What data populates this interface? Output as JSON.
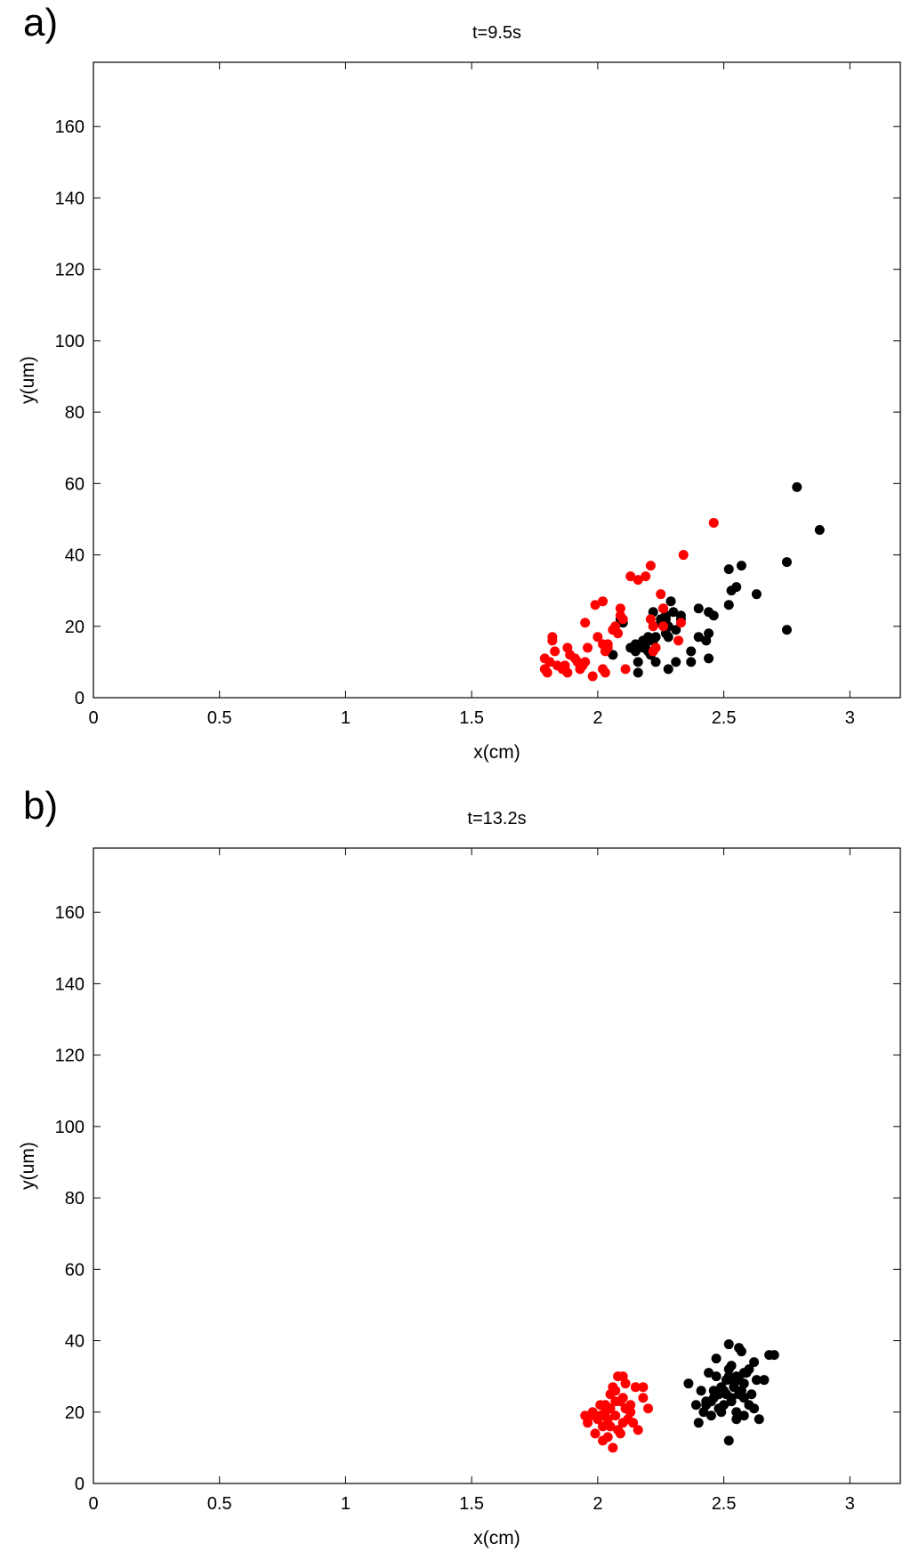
{
  "chart_data": [
    {
      "type": "scatter",
      "panel_label": "a)",
      "title": "t=9.5s",
      "xlabel": "x(cm)",
      "ylabel": "y(um)",
      "xlim": [
        0,
        3.2
      ],
      "ylim": [
        0,
        178
      ],
      "xticks": [
        0,
        0.5,
        1,
        1.5,
        2,
        2.5,
        3
      ],
      "xtick_labels": [
        "0",
        "0.5",
        "1",
        "1.5",
        "2",
        "2.5",
        "3"
      ],
      "yticks": [
        0,
        20,
        40,
        60,
        80,
        100,
        120,
        140,
        160
      ],
      "ytick_labels": [
        "0",
        "20",
        "40",
        "60",
        "80",
        "100",
        "120",
        "140",
        "160"
      ],
      "grid": false,
      "series": [
        {
          "color": "#000000",
          "x": [
            2.79,
            2.88,
            2.75,
            2.75,
            2.63,
            2.57,
            2.55,
            2.53,
            2.52,
            2.52,
            2.46,
            2.44,
            2.44,
            2.44,
            2.43,
            2.4,
            2.4,
            2.37,
            2.37,
            2.33,
            2.33,
            2.31,
            2.3,
            2.29,
            2.28,
            2.28,
            2.28,
            2.27,
            2.27,
            2.26,
            2.25,
            2.23,
            2.23,
            2.22,
            2.22,
            2.21,
            2.2,
            2.2,
            2.19,
            2.18,
            2.18,
            2.16,
            2.16,
            2.15,
            2.15,
            2.13,
            2.1,
            2.09,
            2.06,
            2.27,
            2.31,
            2.25
          ],
          "y": [
            59,
            47,
            38,
            19,
            29,
            37,
            31,
            30,
            36,
            26,
            23,
            11,
            24,
            18,
            16,
            17,
            25,
            13,
            10,
            23,
            22,
            10,
            24,
            27,
            20,
            17,
            8,
            18,
            23,
            25,
            22,
            10,
            17,
            24,
            16,
            12,
            13,
            17,
            15,
            14,
            16,
            7,
            10,
            15,
            13,
            14,
            21,
            22,
            12,
            22,
            19,
            21
          ]
        },
        {
          "color": "#ff0000",
          "x": [
            2.46,
            2.34,
            2.21,
            2.16,
            2.19,
            2.13,
            2.02,
            1.99,
            2.09,
            2.09,
            2.1,
            2.06,
            2.07,
            2.0,
            2.02,
            2.03,
            2.04,
            1.95,
            1.96,
            1.95,
            1.94,
            1.93,
            1.91,
            1.89,
            1.88,
            1.88,
            1.87,
            1.86,
            1.83,
            1.82,
            1.82,
            1.81,
            1.79,
            1.79,
            1.8,
            1.84,
            1.92,
            1.98,
            2.04,
            2.03,
            2.02,
            2.11,
            2.21,
            2.22,
            2.25,
            2.26,
            2.32,
            2.33,
            2.26,
            2.22,
            2.23,
            2.08
          ],
          "y": [
            49,
            40,
            37,
            33,
            34,
            34,
            27,
            26,
            25,
            23,
            22,
            19,
            20,
            17,
            15,
            13,
            14,
            21,
            14,
            10,
            9,
            8,
            11,
            12,
            7,
            14,
            9,
            8,
            13,
            17,
            16,
            10,
            11,
            8,
            7,
            9,
            10,
            6,
            15,
            7,
            8,
            8,
            22,
            20,
            29,
            25,
            16,
            21,
            20,
            13,
            14,
            18
          ]
        }
      ]
    },
    {
      "type": "scatter",
      "panel_label": "b)",
      "title": "t=13.2s",
      "xlabel": "x(cm)",
      "ylabel": "y(um)",
      "xlim": [
        0,
        3.2
      ],
      "ylim": [
        0,
        178
      ],
      "xticks": [
        0,
        0.5,
        1,
        1.5,
        2,
        2.5,
        3
      ],
      "xtick_labels": [
        "0",
        "0.5",
        "1",
        "1.5",
        "2",
        "2.5",
        "3"
      ],
      "yticks": [
        0,
        20,
        40,
        60,
        80,
        100,
        120,
        140,
        160
      ],
      "ytick_labels": [
        "0",
        "20",
        "40",
        "60",
        "80",
        "100",
        "120",
        "140",
        "160"
      ],
      "grid": false,
      "series": [
        {
          "color": "#000000",
          "x": [
            2.52,
            2.56,
            2.57,
            2.47,
            2.68,
            2.7,
            2.62,
            2.6,
            2.66,
            2.58,
            2.58,
            2.55,
            2.54,
            2.52,
            2.51,
            2.5,
            2.49,
            2.48,
            2.47,
            2.46,
            2.45,
            2.44,
            2.43,
            2.42,
            2.41,
            2.4,
            2.39,
            2.36,
            2.53,
            2.55,
            2.58,
            2.6,
            2.62,
            2.64,
            2.56,
            2.53,
            2.5,
            2.48,
            2.45,
            2.43,
            2.54,
            2.57,
            2.51,
            2.52,
            2.55,
            2.58,
            2.61,
            2.63,
            2.46,
            2.49,
            2.52,
            2.56,
            2.59,
            2.53
          ],
          "y": [
            39,
            38,
            37,
            35,
            36,
            36,
            34,
            32,
            29,
            31,
            28,
            30,
            27,
            32,
            29,
            26,
            27,
            25,
            30,
            24,
            23,
            31,
            22,
            20,
            26,
            17,
            22,
            28,
            23,
            20,
            19,
            22,
            21,
            18,
            25,
            24,
            22,
            21,
            19,
            23,
            28,
            26,
            25,
            12,
            18,
            24,
            25,
            29,
            26,
            20,
            30,
            29,
            31,
            33
          ]
        },
        {
          "color": "#ff0000",
          "x": [
            2.08,
            2.1,
            2.06,
            2.05,
            2.07,
            2.15,
            2.18,
            2.1,
            2.13,
            2.07,
            2.05,
            2.04,
            2.03,
            2.02,
            2.01,
            2.0,
            1.99,
            1.98,
            1.97,
            1.96,
            1.95,
            2.11,
            2.12,
            2.14,
            2.16,
            2.18,
            2.2,
            2.13,
            2.09,
            2.06,
            2.04,
            2.02,
            2.05,
            2.08,
            2.1,
            2.01,
            2.03,
            2.07,
            2.11,
            2.09
          ],
          "y": [
            30,
            30,
            27,
            25,
            23,
            27,
            27,
            24,
            22,
            19,
            21,
            18,
            20,
            16,
            19,
            18,
            14,
            20,
            19,
            17,
            19,
            21,
            18,
            17,
            15,
            24,
            21,
            20,
            14,
            10,
            13,
            12,
            16,
            15,
            17,
            22,
            22,
            26,
            28,
            23
          ]
        }
      ]
    }
  ]
}
